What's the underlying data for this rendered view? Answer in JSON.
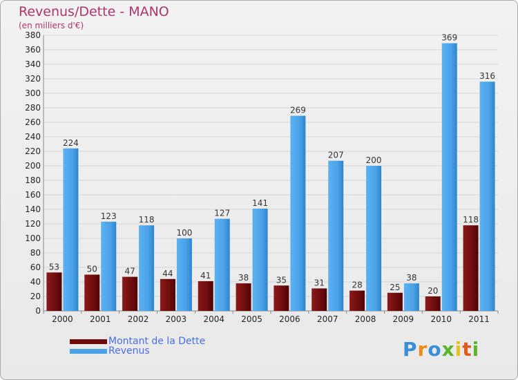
{
  "title": "Revenus/Dette - MANO",
  "subtitle": "(en milliers d'€)",
  "brand": {
    "letters": [
      "P",
      "r",
      "o",
      "x",
      "i",
      "t",
      "i"
    ],
    "colors": [
      "#3a8fd8",
      "#f08a1c",
      "#3a8fd8",
      "#5bb52a",
      "#e8c21c",
      "#e25a1c",
      "#5bb52a"
    ]
  },
  "colors": {
    "debt": "#7a1010",
    "revenue": "#4aa3e8",
    "text": "#222222",
    "grid": "#d7d7d7"
  },
  "chart_data": {
    "type": "bar",
    "title": "Revenus/Dette - MANO",
    "subtitle": "(en milliers d'€)",
    "categories": [
      "2000",
      "2001",
      "2002",
      "2003",
      "2004",
      "2005",
      "2006",
      "2007",
      "2008",
      "2009",
      "2010",
      "2011"
    ],
    "series": [
      {
        "name": "Montant de la Dette",
        "values": [
          53,
          50,
          47,
          44,
          41,
          38,
          35,
          31,
          28,
          25,
          20,
          118
        ]
      },
      {
        "name": "Revenus",
        "values": [
          224,
          123,
          118,
          100,
          127,
          141,
          269,
          207,
          200,
          38,
          369,
          316
        ]
      }
    ],
    "ylim": [
      0,
      380
    ],
    "yticks": [
      0,
      20,
      40,
      60,
      80,
      100,
      120,
      140,
      160,
      180,
      200,
      220,
      240,
      260,
      280,
      300,
      320,
      340,
      360,
      380
    ],
    "grid": true,
    "legend": "bottom-left"
  }
}
